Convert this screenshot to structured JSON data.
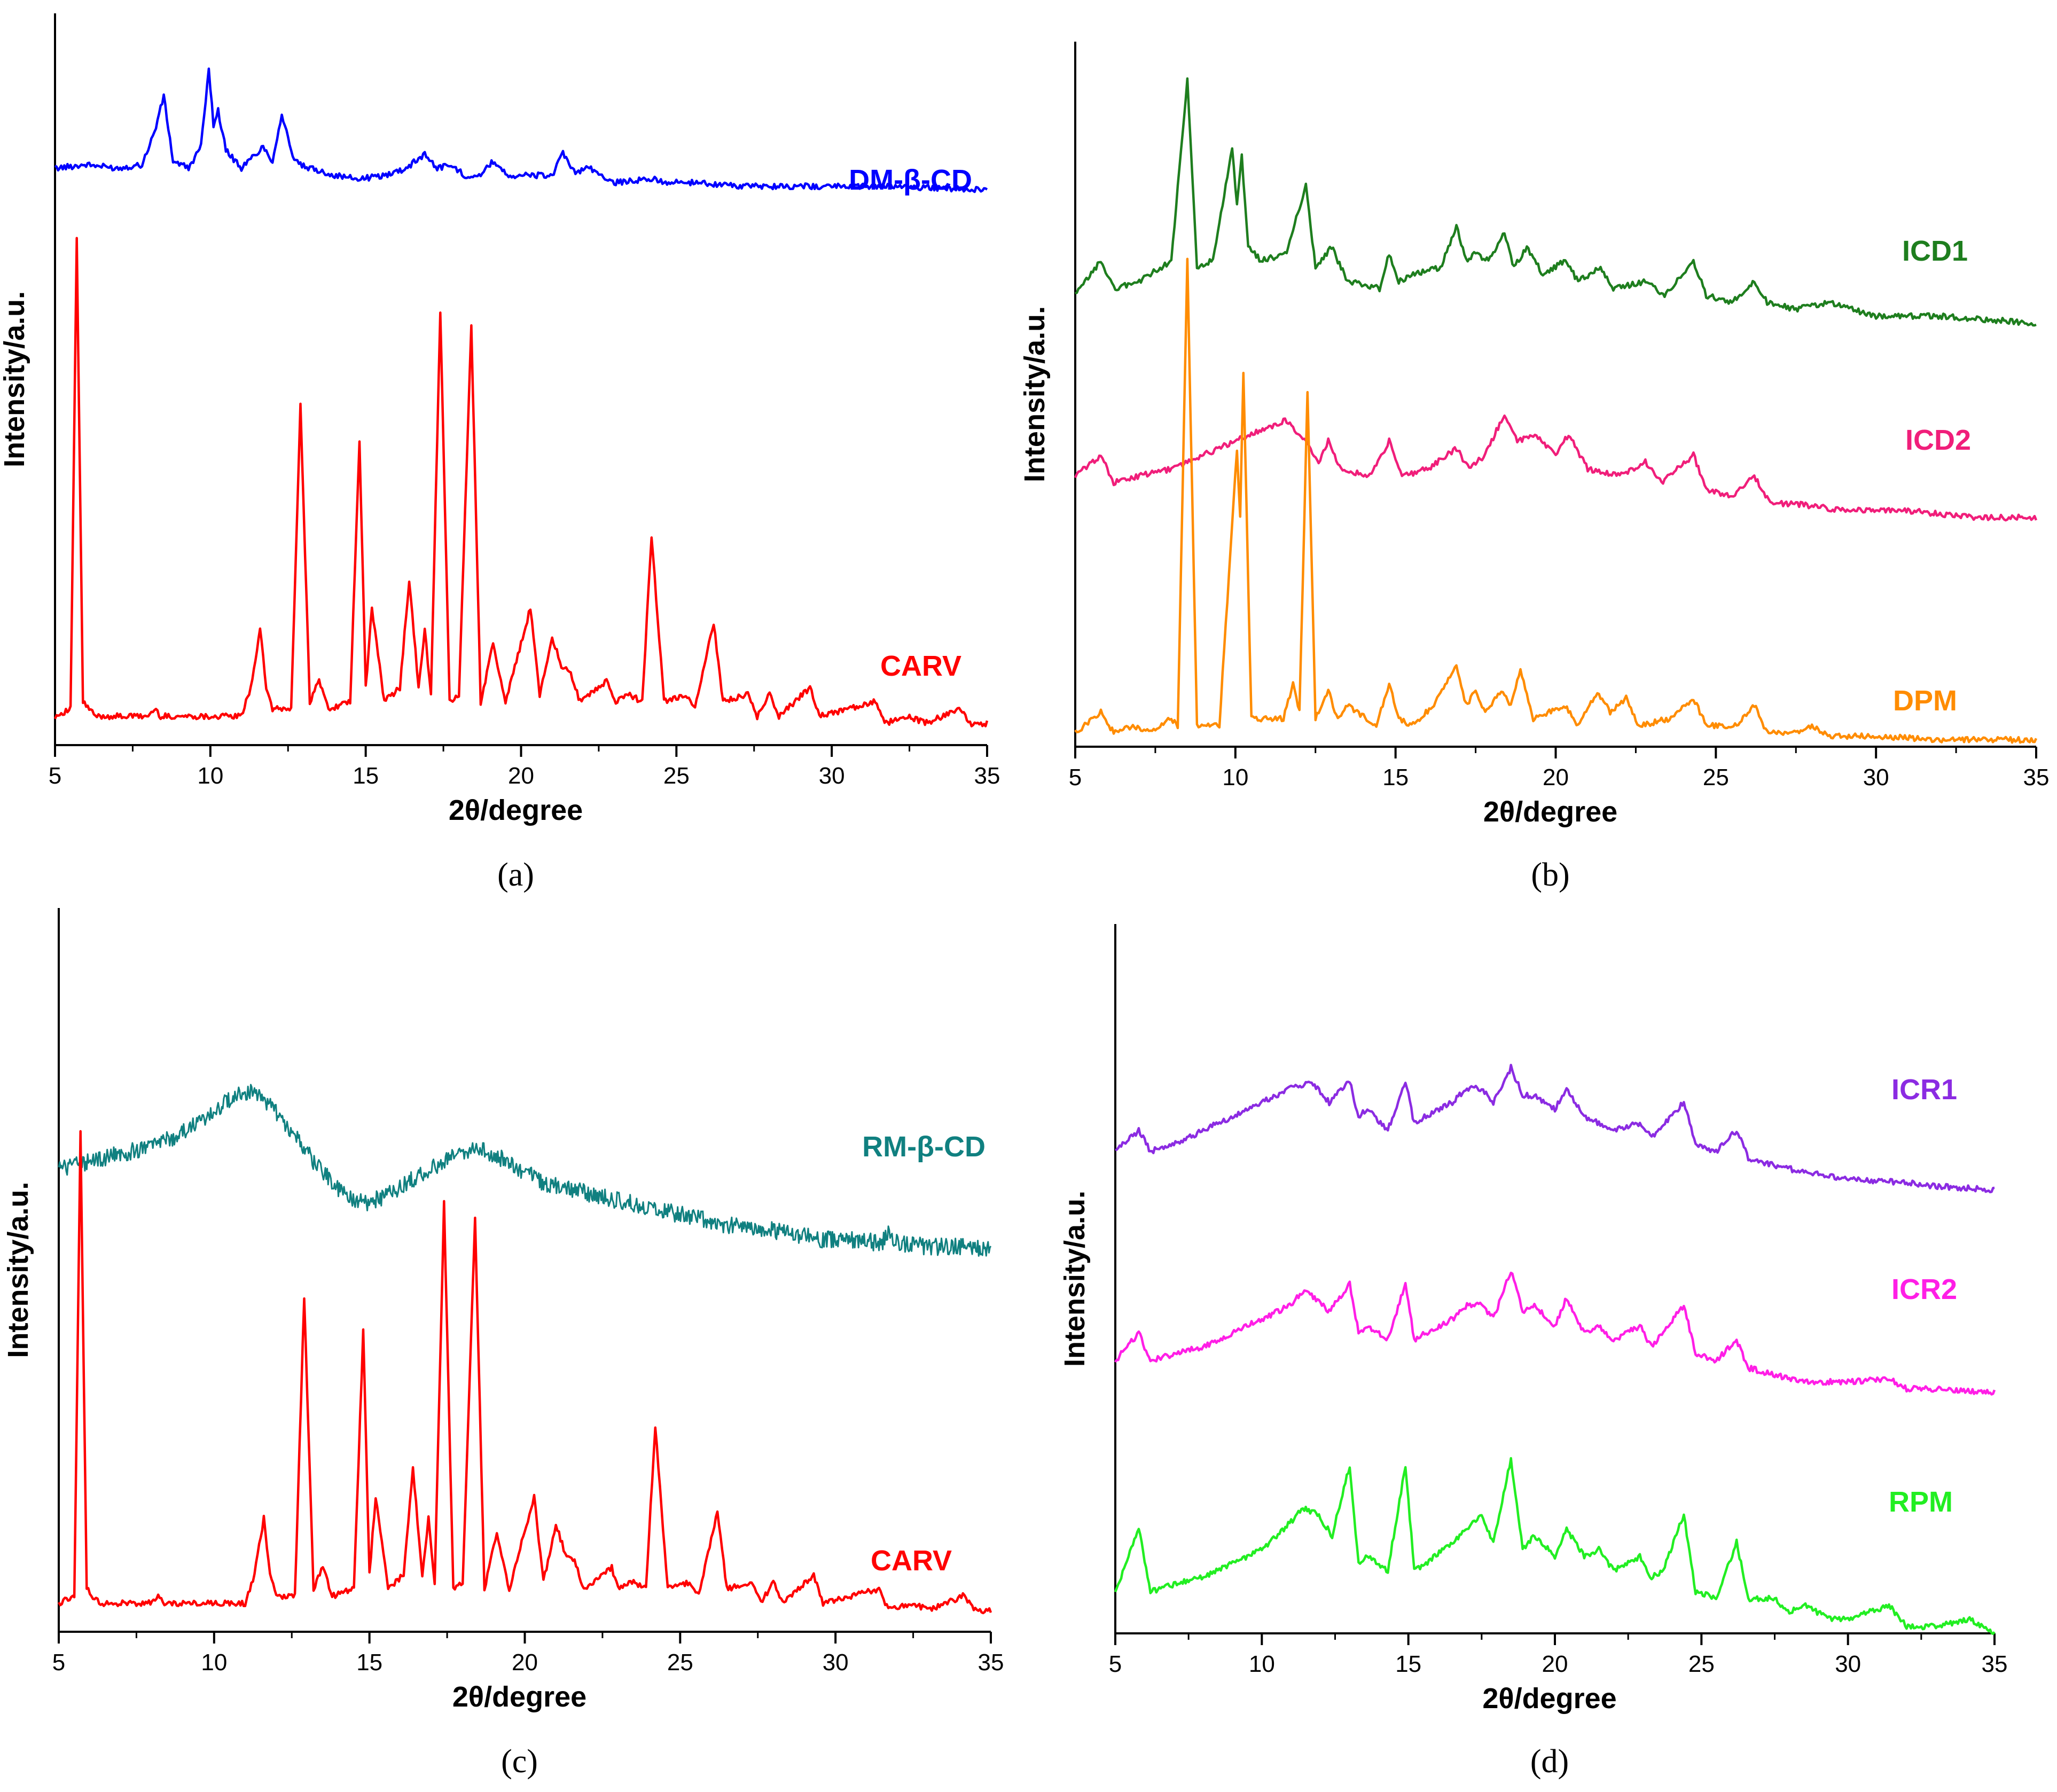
{
  "chart_data": [
    {
      "panel": "a",
      "type": "line",
      "caption": "(a)",
      "xlabel": "2θ/degree",
      "ylabel": "Intensity/a.u.",
      "xlim": [
        5,
        35
      ],
      "xticks": [
        5,
        10,
        15,
        20,
        25,
        30,
        35
      ],
      "ylim": [
        0,
        1
      ],
      "series": [
        {
          "name": "DM-β-CD",
          "color": "#0000ff",
          "x": [
            5,
            6,
            7,
            7.8,
            8.2,
            8.5,
            8.8,
            9.3,
            9.7,
            9.95,
            10.1,
            10.25,
            10.5,
            11,
            11.7,
            12.0,
            12.3,
            12.7,
            13.1,
            13.4,
            14,
            14.8,
            15.6,
            16.3,
            16.9,
            17.3,
            17.7,
            18.2,
            18.7,
            19.1,
            19.6,
            20.4,
            21.0,
            21.35,
            21.7,
            22.2,
            23,
            24.2,
            24.8,
            25.8,
            27,
            28.5,
            30,
            32,
            35
          ],
          "y": [
            0.8,
            0.805,
            0.8,
            0.805,
            0.85,
            0.9,
            0.81,
            0.8,
            0.83,
            0.94,
            0.86,
            0.88,
            0.825,
            0.8,
            0.83,
            0.81,
            0.875,
            0.81,
            0.8,
            0.798,
            0.79,
            0.785,
            0.79,
            0.8,
            0.82,
            0.8,
            0.805,
            0.79,
            0.79,
            0.81,
            0.79,
            0.79,
            0.79,
            0.82,
            0.795,
            0.8,
            0.78,
            0.785,
            0.78,
            0.78,
            0.775,
            0.775,
            0.775,
            0.775,
            0.77
          ]
        },
        {
          "name": "CARV",
          "color": "#ff0000",
          "x": [
            5,
            5.5,
            5.7,
            5.9,
            6.3,
            8.0,
            8.2,
            8.4,
            11.0,
            11.3,
            11.6,
            11.8,
            12.0,
            12.6,
            12.9,
            13.2,
            13.5,
            13.8,
            14.5,
            14.8,
            15.0,
            15.2,
            15.6,
            16.1,
            16.4,
            16.7,
            16.9,
            17.1,
            17.4,
            17.7,
            18.0,
            18.4,
            18.7,
            19.1,
            19.5,
            20.3,
            20.6,
            21.0,
            21.3,
            21.6,
            21.9,
            22.8,
            23.0,
            23.5,
            23.9,
            24.2,
            24.6,
            25.3,
            25.6,
            26.2,
            26.5,
            27.3,
            27.6,
            28.0,
            28.3,
            29.3,
            29.6,
            31.4,
            31.7,
            32.5,
            33.0,
            34.1,
            34.5,
            35
          ],
          "y": [
            0.04,
            0.05,
            0.7,
            0.06,
            0.04,
            0.04,
            0.05,
            0.04,
            0.04,
            0.08,
            0.16,
            0.08,
            0.05,
            0.05,
            0.47,
            0.06,
            0.09,
            0.05,
            0.06,
            0.42,
            0.08,
            0.19,
            0.06,
            0.08,
            0.23,
            0.08,
            0.16,
            0.07,
            0.6,
            0.06,
            0.07,
            0.58,
            0.06,
            0.14,
            0.06,
            0.19,
            0.07,
            0.15,
            0.11,
            0.1,
            0.06,
            0.09,
            0.06,
            0.07,
            0.06,
            0.29,
            0.06,
            0.07,
            0.05,
            0.17,
            0.06,
            0.07,
            0.04,
            0.07,
            0.04,
            0.08,
            0.04,
            0.06,
            0.03,
            0.04,
            0.03,
            0.05,
            0.03,
            0.03
          ]
        }
      ]
    },
    {
      "panel": "b",
      "type": "line",
      "caption": "(b)",
      "xlabel": "2θ/degree",
      "ylabel": "Intensity/a.u.",
      "xlim": [
        5,
        35
      ],
      "xticks": [
        5,
        10,
        15,
        20,
        25,
        30,
        35
      ],
      "ylim": [
        0,
        1
      ],
      "series": [
        {
          "name": "ICD1",
          "color": "#1e7e1e",
          "x": [
            5,
            5.8,
            6.2,
            7.0,
            8.0,
            8.5,
            8.8,
            9.3,
            9.9,
            10.05,
            10.2,
            10.4,
            10.8,
            11.6,
            12.2,
            12.5,
            13.0,
            13.5,
            14.5,
            14.8,
            15.1,
            15.5,
            16.4,
            16.9,
            17.2,
            17.5,
            17.9,
            18.4,
            18.7,
            19.1,
            19.6,
            20.3,
            20.7,
            21.4,
            21.8,
            22.8,
            23.4,
            24.3,
            24.7,
            25.5,
            26.2,
            26.6,
            27.5,
            28.5,
            30,
            32,
            35
          ],
          "y": [
            0.65,
            0.7,
            0.66,
            0.67,
            0.7,
            0.96,
            0.69,
            0.7,
            0.86,
            0.78,
            0.85,
            0.72,
            0.7,
            0.71,
            0.81,
            0.69,
            0.72,
            0.67,
            0.66,
            0.71,
            0.67,
            0.68,
            0.69,
            0.75,
            0.7,
            0.71,
            0.7,
            0.74,
            0.69,
            0.72,
            0.68,
            0.7,
            0.67,
            0.69,
            0.66,
            0.67,
            0.65,
            0.7,
            0.65,
            0.64,
            0.67,
            0.64,
            0.63,
            0.64,
            0.62,
            0.62,
            0.61
          ]
        },
        {
          "name": "ICD2",
          "color": "#f01e7a",
          "x": [
            5,
            5.8,
            6.2,
            7,
            8,
            9,
            10,
            11,
            11.6,
            12.2,
            12.6,
            12.9,
            13.3,
            14.2,
            14.8,
            15.2,
            16,
            16.9,
            17.3,
            17.8,
            18.4,
            18.8,
            19.3,
            20.0,
            20.4,
            21,
            22,
            22.8,
            23.3,
            24.3,
            24.7,
            25.5,
            26.2,
            26.7,
            27.5,
            29,
            31,
            33,
            35
          ],
          "y": [
            0.39,
            0.42,
            0.38,
            0.39,
            0.4,
            0.42,
            0.44,
            0.46,
            0.47,
            0.44,
            0.41,
            0.44,
            0.4,
            0.39,
            0.44,
            0.39,
            0.4,
            0.43,
            0.4,
            0.42,
            0.48,
            0.44,
            0.45,
            0.42,
            0.45,
            0.4,
            0.39,
            0.41,
            0.38,
            0.42,
            0.37,
            0.36,
            0.39,
            0.35,
            0.35,
            0.34,
            0.34,
            0.33,
            0.33
          ]
        },
        {
          "name": "DPM",
          "color": "#ff8c00",
          "x": [
            5,
            5.8,
            6.2,
            6.8,
            7.2,
            8.0,
            8.2,
            8.5,
            8.8,
            9.5,
            10.05,
            10.15,
            10.25,
            10.5,
            11.5,
            11.8,
            12.0,
            12.25,
            12.5,
            12.9,
            13.2,
            13.5,
            14.4,
            14.8,
            15.1,
            15.5,
            16.2,
            16.9,
            17.2,
            17.5,
            17.8,
            18.3,
            18.6,
            18.9,
            19.3,
            20.3,
            20.7,
            21.3,
            21.7,
            22.2,
            22.6,
            23.5,
            24.3,
            24.7,
            25.6,
            26.2,
            26.6,
            27.5,
            28.0,
            28.5,
            30,
            32,
            35
          ],
          "y": [
            0.02,
            0.05,
            0.02,
            0.03,
            0.02,
            0.04,
            0.03,
            0.7,
            0.03,
            0.03,
            0.43,
            0.33,
            0.54,
            0.04,
            0.04,
            0.09,
            0.05,
            0.51,
            0.04,
            0.08,
            0.04,
            0.06,
            0.03,
            0.09,
            0.04,
            0.03,
            0.06,
            0.12,
            0.06,
            0.08,
            0.05,
            0.08,
            0.06,
            0.11,
            0.04,
            0.06,
            0.03,
            0.08,
            0.05,
            0.07,
            0.03,
            0.04,
            0.07,
            0.03,
            0.03,
            0.06,
            0.02,
            0.02,
            0.03,
            0.015,
            0.015,
            0.01,
            0.01
          ]
        }
      ]
    },
    {
      "panel": "c",
      "type": "line",
      "caption": "(c)",
      "xlabel": "2θ/degree",
      "ylabel": "Intensity/a.u.",
      "xlim": [
        5,
        35
      ],
      "xticks": [
        5,
        10,
        15,
        20,
        25,
        30,
        35
      ],
      "ylim": [
        0,
        1
      ],
      "series": [
        {
          "name": "RM-β-CD",
          "color": "#108080",
          "x": [
            5,
            6,
            7,
            8,
            9,
            10,
            10.6,
            11.2,
            11.8,
            12.5,
            13.2,
            14,
            14.8,
            15.5,
            16.2,
            17,
            17.8,
            18.4,
            19,
            19.8,
            20.6,
            21.5,
            22.5,
            23.5,
            24.5,
            25.5,
            26.5,
            27.5,
            28.5,
            29.5,
            30.5,
            31.5,
            31.7,
            32,
            33,
            34,
            35
          ],
          "y": [
            0.65,
            0.66,
            0.67,
            0.68,
            0.7,
            0.73,
            0.75,
            0.76,
            0.74,
            0.7,
            0.66,
            0.62,
            0.6,
            0.61,
            0.63,
            0.65,
            0.67,
            0.68,
            0.67,
            0.65,
            0.63,
            0.62,
            0.61,
            0.6,
            0.59,
            0.58,
            0.57,
            0.565,
            0.56,
            0.55,
            0.55,
            0.545,
            0.56,
            0.545,
            0.54,
            0.54,
            0.535
          ]
        },
        {
          "name": "CARV",
          "color": "#ff0000",
          "x": [
            5,
            5.5,
            5.7,
            5.9,
            6.3,
            8.0,
            8.2,
            8.4,
            11.0,
            11.3,
            11.6,
            11.8,
            12.0,
            12.6,
            12.9,
            13.2,
            13.5,
            13.8,
            14.5,
            14.8,
            15.0,
            15.2,
            15.6,
            16.1,
            16.4,
            16.7,
            16.9,
            17.1,
            17.4,
            17.7,
            18.0,
            18.4,
            18.7,
            19.1,
            19.5,
            20.3,
            20.6,
            21.0,
            21.3,
            21.6,
            21.9,
            22.8,
            23.0,
            23.5,
            23.9,
            24.2,
            24.6,
            25.3,
            25.6,
            26.2,
            26.5,
            27.3,
            27.6,
            28.0,
            28.3,
            29.3,
            29.6,
            31.4,
            31.7,
            32.5,
            33.0,
            34.1,
            34.5,
            35
          ],
          "y": [
            0.04,
            0.05,
            0.7,
            0.06,
            0.04,
            0.04,
            0.05,
            0.04,
            0.04,
            0.08,
            0.16,
            0.08,
            0.05,
            0.05,
            0.47,
            0.06,
            0.09,
            0.05,
            0.06,
            0.42,
            0.08,
            0.19,
            0.06,
            0.08,
            0.23,
            0.08,
            0.16,
            0.07,
            0.6,
            0.06,
            0.07,
            0.58,
            0.06,
            0.14,
            0.06,
            0.19,
            0.07,
            0.15,
            0.11,
            0.1,
            0.06,
            0.09,
            0.06,
            0.07,
            0.06,
            0.29,
            0.06,
            0.07,
            0.05,
            0.17,
            0.06,
            0.07,
            0.04,
            0.07,
            0.04,
            0.08,
            0.04,
            0.06,
            0.03,
            0.04,
            0.03,
            0.05,
            0.03,
            0.03
          ]
        }
      ]
    },
    {
      "panel": "d",
      "type": "line",
      "caption": "(d)",
      "xlabel": "2θ/degree",
      "ylabel": "Intensity/a.u.",
      "xlim": [
        5,
        35
      ],
      "xticks": [
        5,
        10,
        15,
        20,
        25,
        30,
        35
      ],
      "ylim": [
        0,
        1
      ],
      "series": [
        {
          "name": "ICR1",
          "color": "#8b2be2",
          "x": [
            5,
            5.8,
            6.2,
            7,
            8,
            9,
            10,
            11,
            11.7,
            12.3,
            13.0,
            13.3,
            13.6,
            14.3,
            14.9,
            15.2,
            15.6,
            16.5,
            17.0,
            17.5,
            17.9,
            18.5,
            18.9,
            19.3,
            20.0,
            20.4,
            21,
            22,
            22.9,
            23.3,
            24.4,
            24.8,
            25.5,
            26.2,
            26.6,
            27.5,
            28.5,
            30,
            32,
            33,
            35
          ],
          "y": [
            0.69,
            0.72,
            0.69,
            0.7,
            0.72,
            0.74,
            0.76,
            0.78,
            0.79,
            0.76,
            0.79,
            0.74,
            0.75,
            0.72,
            0.79,
            0.73,
            0.74,
            0.76,
            0.78,
            0.78,
            0.76,
            0.81,
            0.77,
            0.77,
            0.75,
            0.78,
            0.74,
            0.72,
            0.73,
            0.71,
            0.76,
            0.7,
            0.69,
            0.72,
            0.68,
            0.67,
            0.66,
            0.65,
            0.645,
            0.64,
            0.635
          ]
        },
        {
          "name": "ICR2",
          "color": "#ff1ee6",
          "x": [
            5,
            5.8,
            6.2,
            7,
            8,
            9,
            10,
            11,
            11.4,
            11.8,
            12.3,
            13.0,
            13.3,
            13.6,
            14.3,
            14.9,
            15.2,
            15.6,
            16.5,
            17.0,
            17.5,
            17.9,
            18.5,
            18.9,
            19.3,
            20.0,
            20.4,
            21,
            21.5,
            22,
            22.9,
            23.3,
            24.4,
            24.8,
            25.5,
            26.2,
            26.6,
            27.5,
            28.5,
            30,
            31.4,
            32,
            33,
            35
          ],
          "y": [
            0.39,
            0.43,
            0.39,
            0.4,
            0.41,
            0.43,
            0.45,
            0.47,
            0.49,
            0.48,
            0.46,
            0.5,
            0.43,
            0.44,
            0.42,
            0.5,
            0.42,
            0.43,
            0.45,
            0.47,
            0.47,
            0.45,
            0.52,
            0.46,
            0.47,
            0.44,
            0.48,
            0.43,
            0.44,
            0.42,
            0.44,
            0.41,
            0.47,
            0.4,
            0.39,
            0.42,
            0.38,
            0.37,
            0.36,
            0.36,
            0.365,
            0.35,
            0.35,
            0.345
          ]
        },
        {
          "name": "RPM",
          "color": "#22ee22",
          "x": [
            5,
            5.8,
            6.2,
            7,
            8,
            9,
            10,
            11,
            11.4,
            11.9,
            12.4,
            13.0,
            13.3,
            13.6,
            14.3,
            14.9,
            15.2,
            15.6,
            16.5,
            17.0,
            17.5,
            17.9,
            18.5,
            18.9,
            19.3,
            20.0,
            20.4,
            21,
            21.5,
            22,
            22.9,
            23.3,
            23.7,
            24.4,
            24.8,
            25.5,
            26.2,
            26.6,
            27.5,
            28.0,
            28.5,
            29.4,
            30,
            31.4,
            32,
            33,
            34.2,
            35
          ],
          "y": [
            0.06,
            0.15,
            0.06,
            0.07,
            0.08,
            0.1,
            0.12,
            0.16,
            0.18,
            0.17,
            0.14,
            0.24,
            0.1,
            0.11,
            0.09,
            0.24,
            0.09,
            0.1,
            0.13,
            0.15,
            0.17,
            0.13,
            0.25,
            0.12,
            0.14,
            0.11,
            0.15,
            0.11,
            0.12,
            0.09,
            0.11,
            0.08,
            0.09,
            0.17,
            0.06,
            0.05,
            0.13,
            0.05,
            0.05,
            0.03,
            0.04,
            0.02,
            0.02,
            0.04,
            0.01,
            0.01,
            0.02,
            0.0
          ]
        }
      ]
    }
  ]
}
